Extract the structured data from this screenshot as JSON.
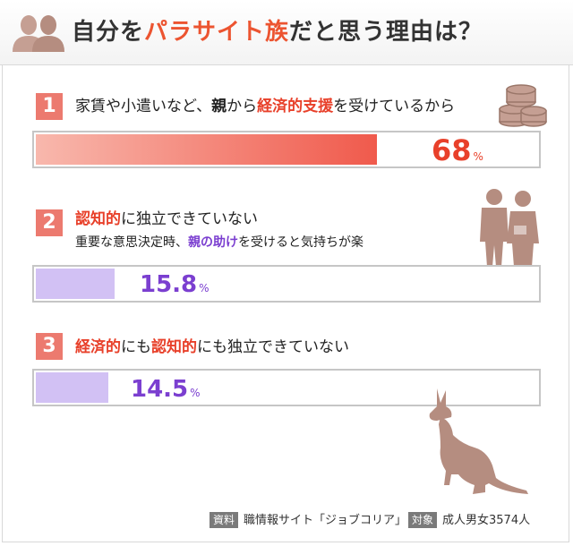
{
  "title": {
    "part1": "自分を",
    "part2": "パラサイト族",
    "part3": "だと思う理由は？"
  },
  "items": [
    {
      "number": "1",
      "label_parts": [
        "家賃や小遣いなど、",
        "親",
        "から",
        "経済的支援",
        "を受けているから"
      ],
      "value": "68",
      "unit": "%"
    },
    {
      "number": "2",
      "label_parts": [
        "認知的",
        "に独立できていない"
      ],
      "sub_parts": [
        "重要な意思決定時、",
        "親の助け",
        "を受けると気持ちが楽"
      ],
      "value": "15.8",
      "unit": "%"
    },
    {
      "number": "3",
      "label_parts": [
        "経済的",
        "にも",
        "認知的",
        "にも独立できていない"
      ],
      "value": "14.5",
      "unit": "%"
    }
  ],
  "footer": {
    "source_tag": "資料",
    "source": "職情報サイト「ジョブコリア」",
    "target_tag": "対象",
    "target": "成人男女3574人"
  },
  "icons": [
    "people-icon",
    "coins-icon",
    "couple-icon",
    "kangaroo-icon"
  ],
  "colors": {
    "accent": "#ec5430",
    "badge": "#ec7a6f",
    "highlight_red": "#e8402a",
    "highlight_purple": "#7b3fd0",
    "bar_red": "#f05a4c",
    "bar_purple": "#d2c1f4",
    "illustration": "#b58d80"
  },
  "chart_data": {
    "type": "bar",
    "orientation": "horizontal",
    "categories": [
      "家賃や小遣いなど、親から経済的支援を受けているから",
      "認知的に独立できていない 重要な意思決定時、親の助けを受けると気持ちが楽",
      "経済的にも認知的にも独立できていない"
    ],
    "values": [
      68,
      15.8,
      14.5
    ],
    "unit": "%",
    "title": "自分をパラサイト族だと思う理由は？",
    "xlim": [
      0,
      100
    ]
  }
}
